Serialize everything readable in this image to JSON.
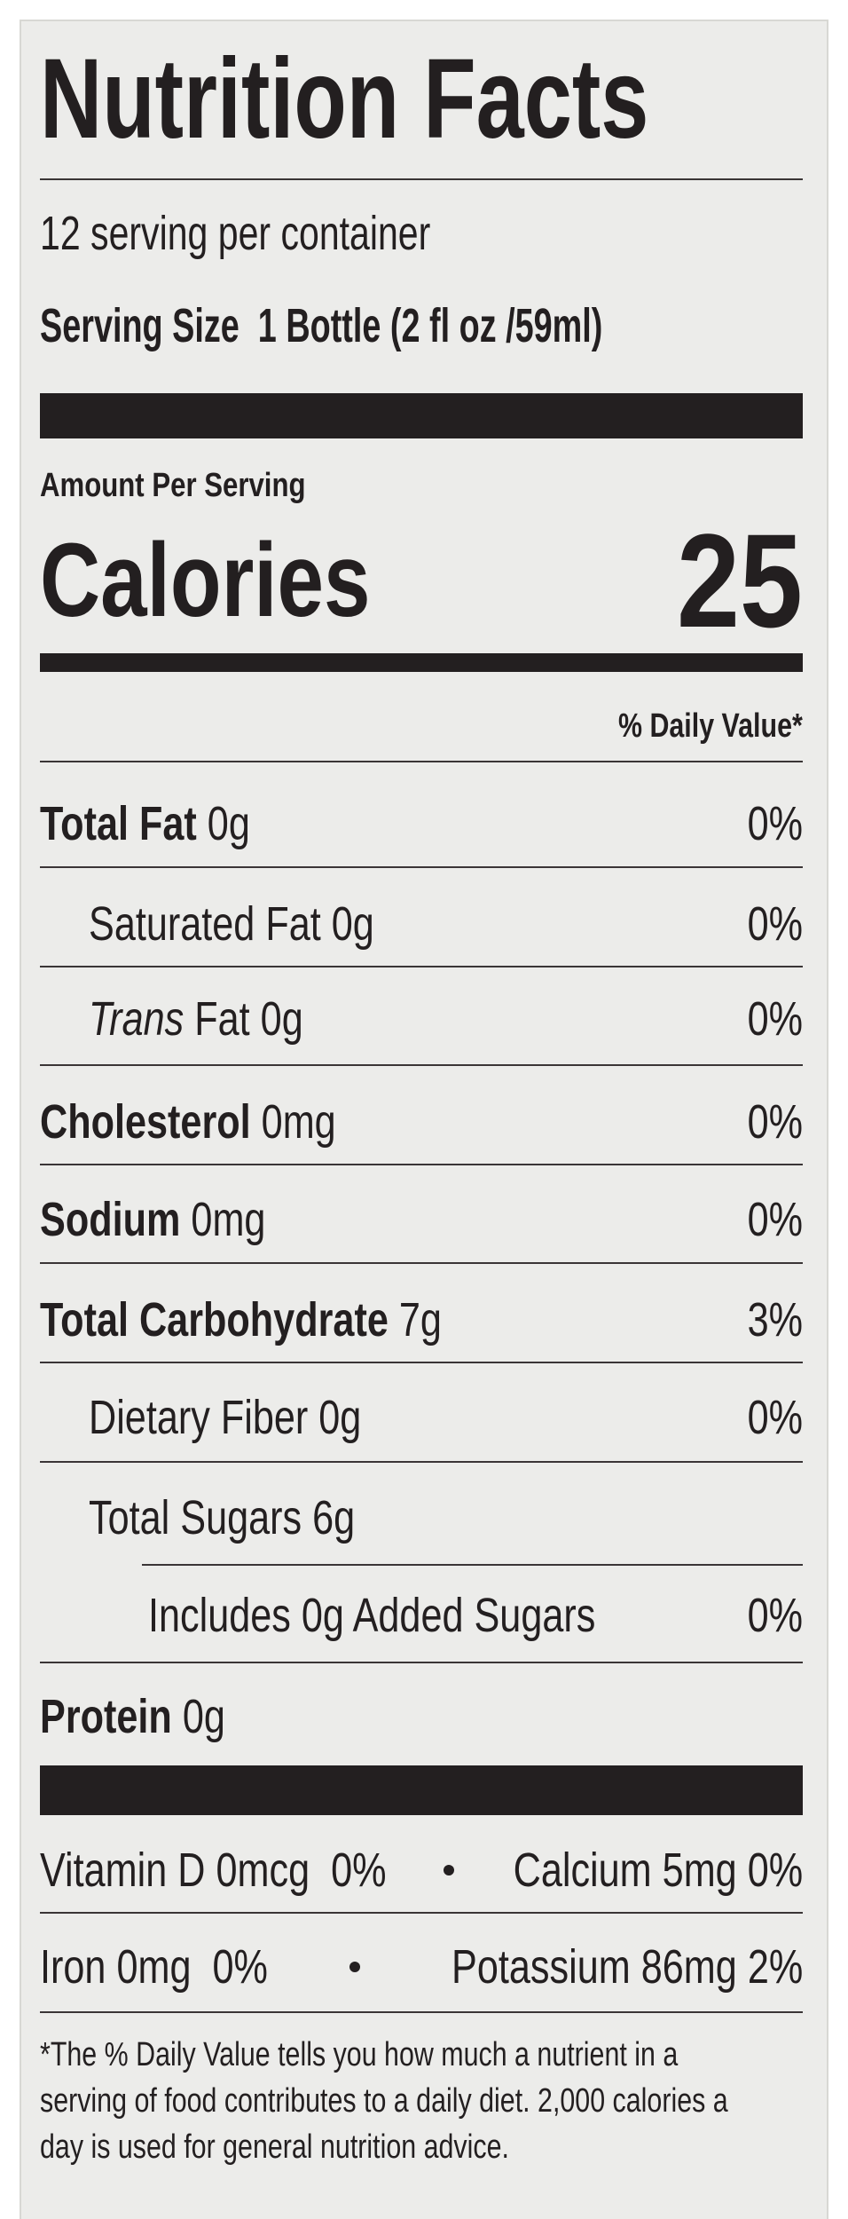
{
  "title": "Nutrition Facts",
  "servings": "12 serving per container",
  "serving_size": {
    "label": "Serving Size",
    "value": "1 Bottle (2 fl oz /59ml)"
  },
  "calories": {
    "header": "Amount Per Serving",
    "label": "Calories",
    "value": "25"
  },
  "dv_header": "% Daily Value*",
  "nutrients": [
    {
      "name": "Total Fat",
      "amount": "0g",
      "dv": "0%"
    },
    {
      "name": "Saturated Fat",
      "amount": "0g",
      "dv": "0%"
    },
    {
      "name_italic": "Trans",
      "name": "Fat",
      "amount": "0g",
      "dv": "0%"
    },
    {
      "name": "Cholesterol",
      "amount": "0mg",
      "dv": "0%"
    },
    {
      "name": "Sodium",
      "amount": "0mg",
      "dv": "0%"
    },
    {
      "name": "Total Carbohydrate",
      "amount": "7g",
      "dv": "3%"
    },
    {
      "name": "Dietary Fiber",
      "amount": "0g",
      "dv": "0%"
    },
    {
      "name": "Total Sugars",
      "amount": "6g"
    },
    {
      "name": "Includes 0g Added Sugars",
      "dv": "0%"
    },
    {
      "name": "Protein",
      "amount": "0g"
    }
  ],
  "vitamins": [
    [
      {
        "name": "Vitamin D 0mcg",
        "dv": "0%"
      },
      {
        "name": "Calcium 5mg",
        "dv": "0%"
      }
    ],
    [
      {
        "name": "Iron 0mg",
        "dv": "0%"
      },
      {
        "name": "Potassium 86mg",
        "dv": "2%"
      }
    ]
  ],
  "footnote": [
    "*The % Daily Value tells you how much a nutrient in a",
    "serving of food contributes to a daily diet. 2,000 calories a",
    "day is used for general nutrition advice."
  ]
}
